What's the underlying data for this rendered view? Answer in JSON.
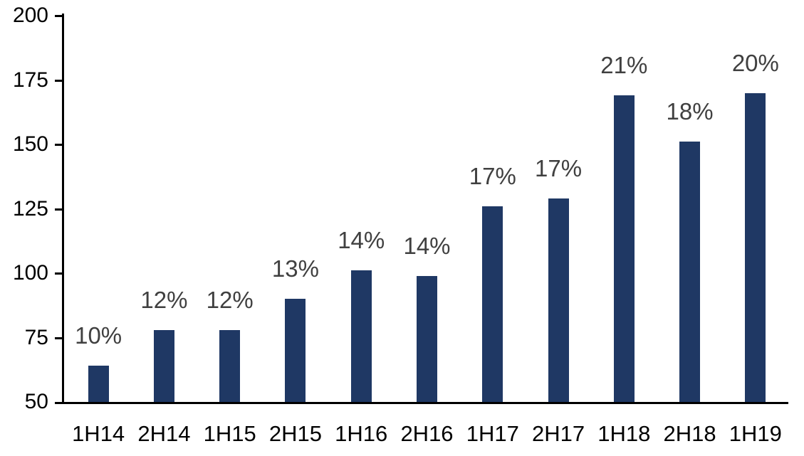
{
  "chart_data": {
    "type": "bar",
    "title": "",
    "xlabel": "",
    "ylabel": "",
    "categories": [
      "1H14",
      "2H14",
      "1H15",
      "2H15",
      "1H16",
      "2H16",
      "1H17",
      "2H17",
      "1H18",
      "2H18",
      "1H19"
    ],
    "values": [
      64,
      78,
      78,
      90,
      101,
      99,
      126,
      129,
      169,
      151,
      170
    ],
    "bar_labels": [
      "10%",
      "12%",
      "12%",
      "13%",
      "14%",
      "14%",
      "17%",
      "17%",
      "21%",
      "18%",
      "20%"
    ],
    "ylim": [
      50,
      200
    ],
    "yticks": [
      50,
      75,
      100,
      125,
      150,
      175,
      200
    ],
    "grid": false,
    "legend": "none",
    "bar_color": "#1f3864",
    "data_label_color": "#404040",
    "axis_color": "#000000"
  }
}
